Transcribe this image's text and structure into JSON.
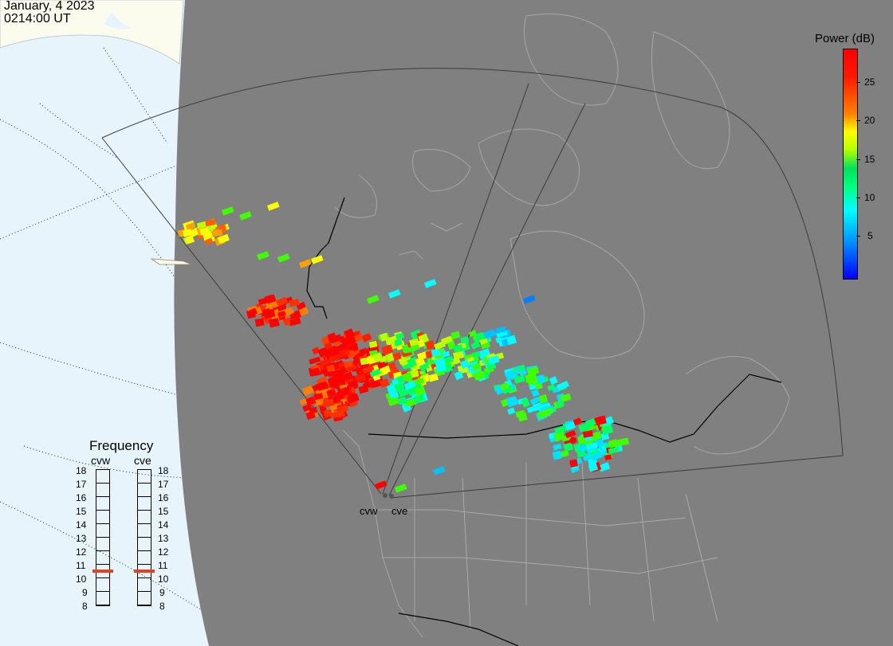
{
  "header": {
    "date": "January, 4 2023",
    "time": "0214:00 UT"
  },
  "colorbar": {
    "title": "Power (dB)",
    "ticks": [
      "25",
      "20",
      "15",
      "10",
      "5"
    ],
    "colors": [
      "#0000ff",
      "#00a0ff",
      "#00ffff",
      "#00ff60",
      "#40ff00",
      "#c0ff00",
      "#ffff00",
      "#ffa000",
      "#ff3000",
      "#ff0000"
    ]
  },
  "frequency": {
    "title": "Frequency",
    "radars": [
      "cvw",
      "cve"
    ],
    "levels": [
      "18",
      "17",
      "16",
      "15",
      "14",
      "13",
      "12",
      "11",
      "10",
      "9",
      "8"
    ],
    "selected": {
      "cvw": "10.5",
      "cve": "10.5"
    },
    "marker_color": "#e8401c"
  },
  "sites": [
    {
      "label": "cvw"
    },
    {
      "label": "cve"
    }
  ],
  "colors": {
    "land": "#808080",
    "ocean": "#e8f4fc",
    "ice": "#fbfbee",
    "echo_high": "#ff0000"
  }
}
